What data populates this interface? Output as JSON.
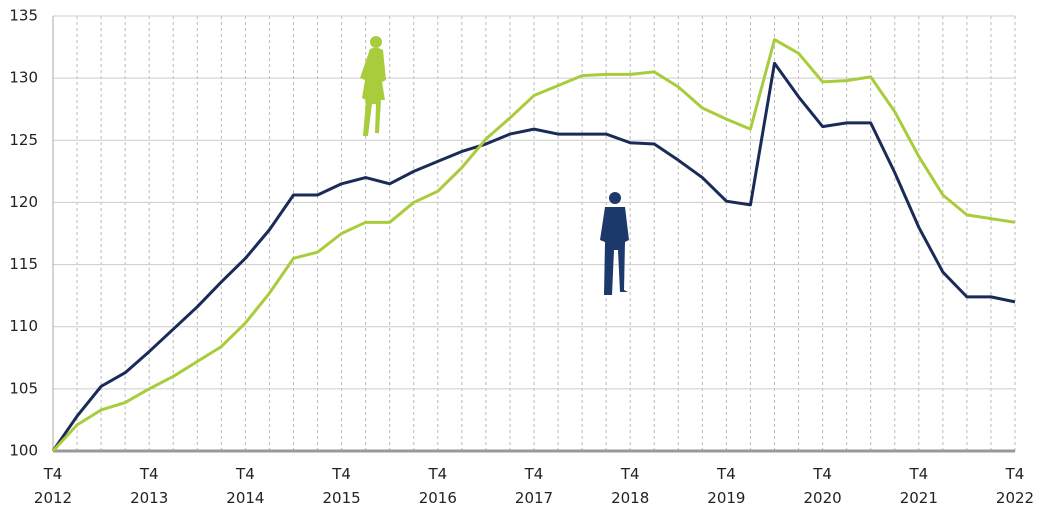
{
  "chart_data": {
    "type": "line",
    "categories": [
      "T4\n2012",
      null,
      null,
      null,
      "T4\n2013",
      null,
      null,
      null,
      "T4\n2014",
      null,
      null,
      null,
      "T4\n2015",
      null,
      null,
      null,
      "T4\n2016",
      null,
      null,
      null,
      "T4\n2017",
      null,
      null,
      null,
      "T4\n2018",
      null,
      null,
      null,
      "T4\n2019",
      null,
      null,
      null,
      "T4\n2020",
      null,
      null,
      null,
      "T4\n2021",
      null,
      null,
      null,
      "T4\n2022"
    ],
    "series": [
      {
        "color": "#1b2b57",
        "values": [
          100,
          102.8,
          105.2,
          106.3,
          108,
          109.8,
          111.6,
          113.6,
          115.5,
          117.8,
          120.6,
          120.6,
          121.5,
          122,
          121.5,
          122.5,
          123.3,
          124.1,
          124.7,
          125.5,
          125.9,
          125.5,
          125.5,
          125.5,
          124.8,
          124.7,
          123.4,
          122,
          120.1,
          119.8,
          131.2,
          128.5,
          126.1,
          126.4,
          126.4,
          122.4,
          118,
          114.4,
          112.4,
          112.4,
          112
        ]
      },
      {
        "color": "#a9cc3d",
        "values": [
          100,
          102.1,
          103.3,
          103.9,
          105,
          106,
          107.2,
          108.4,
          110.3,
          112.7,
          115.5,
          116,
          117.5,
          118.4,
          118.4,
          120,
          120.9,
          122.8,
          125.1,
          126.8,
          128.6,
          129.4,
          130.2,
          130.3,
          130.3,
          130.5,
          129.3,
          127.6,
          126.7,
          125.9,
          133.1,
          132,
          129.7,
          129.8,
          130.1,
          127.3,
          123.7,
          120.6,
          119,
          118.7,
          118.4
        ]
      }
    ],
    "ylim": [
      100,
      135
    ],
    "yticks": [
      100,
      105,
      110,
      115,
      120,
      125,
      130,
      135
    ],
    "grid": true
  }
}
